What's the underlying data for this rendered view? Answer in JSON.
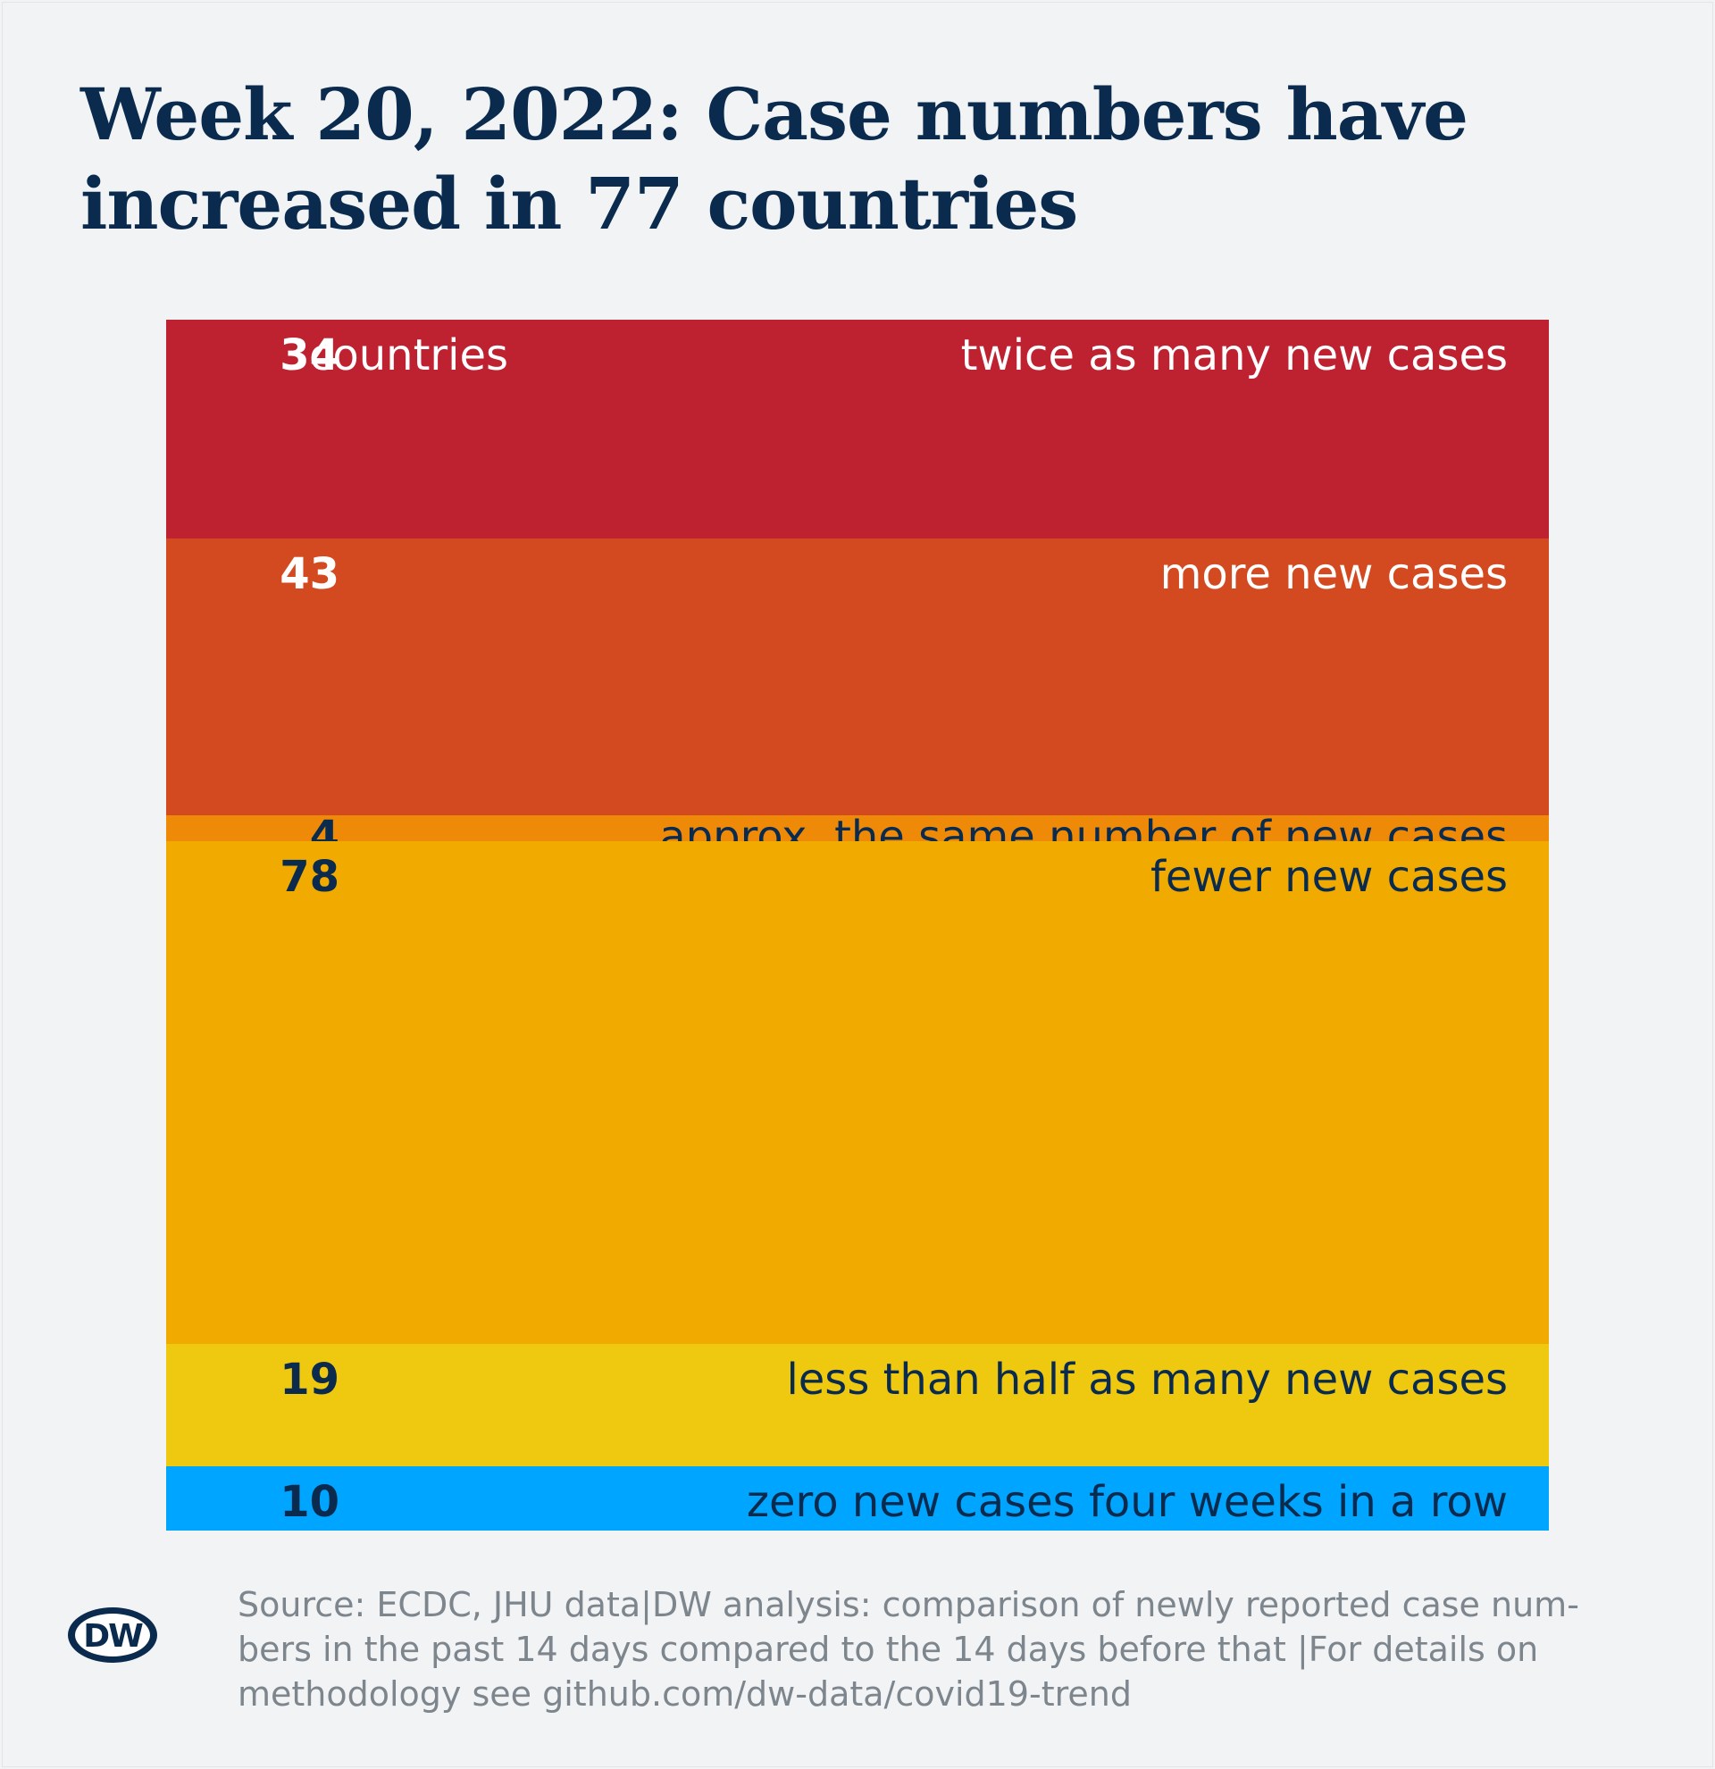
{
  "title_line1": "Week 20, 2022: Case numbers have",
  "title_line2": "increased in 77 countries",
  "chart_data": {
    "type": "bar",
    "orientation": "stacked-vertical",
    "unit_label": "countries",
    "categories": [
      "twice as many new cases",
      "more new cases",
      "approx. the same number of new cases",
      "fewer new cases",
      "less than half as many new cases",
      "zero new cases four weeks in a row"
    ],
    "values": [
      34,
      43,
      4,
      78,
      19,
      10
    ],
    "colors": [
      "#be212f",
      "#d44a20",
      "#ef8a09",
      "#f0aa00",
      "#eec910",
      "#00a5ff"
    ],
    "text_colors": [
      "#ffffff",
      "#ffffff",
      "#0a2b4e",
      "#0a2b4e",
      "#0a2b4e",
      "#0a2b4e"
    ]
  },
  "footer": {
    "line1": "Source: ECDC, JHU data|DW analysis: comparison of newly reported case num-",
    "line2": "bers in the past 14 days compared to the 14 days before that |For details on",
    "line3": "methodology see github.com/dw-data/covid19-trend"
  },
  "logo": {
    "text": "DW",
    "color": "#0a2b4e"
  }
}
